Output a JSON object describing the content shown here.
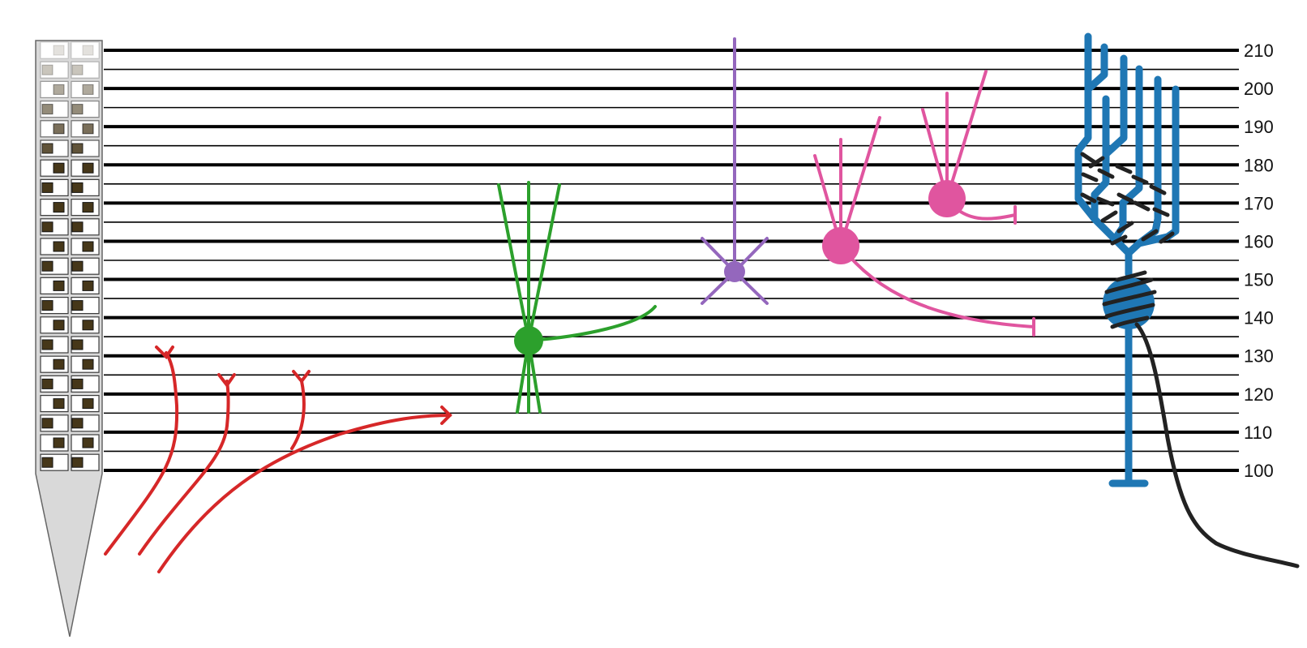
{
  "figure": {
    "depth_ticks": [
      "210",
      "200",
      "190",
      "180",
      "170",
      "160",
      "150",
      "140",
      "130",
      "120",
      "110",
      "100"
    ]
  },
  "colors": {
    "probe_fill": "#d8d8d8",
    "probe_stroke": "#555555",
    "lines": "#000000",
    "fiber_red": "#d62728",
    "cell_green": "#2ca02c",
    "cell_purple": "#9467bd",
    "cell_pink": "#e0559f",
    "cell_blue": "#1f77b4",
    "axon_black": "#222222"
  },
  "elements": {
    "probe": {
      "description": "silicon probe",
      "icon": "probe-shank"
    },
    "fibers": {
      "icon": "branching-axons",
      "count": 3
    },
    "cells": [
      "green-neuron",
      "purple-neuron",
      "pink-neuron-large",
      "pink-neuron-small",
      "blue-neuron"
    ]
  }
}
